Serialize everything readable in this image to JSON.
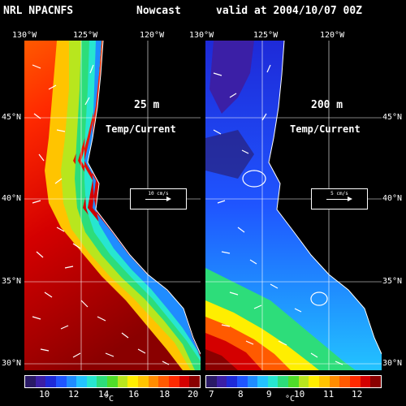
{
  "header": {
    "model": "NRL NPACNFS",
    "product": "Nowcast",
    "valid": "valid at 2004/10/07 00Z"
  },
  "lon_labels": [
    "130°W",
    "125°W",
    "120°W",
    "130°W",
    "125°W",
    "120°W"
  ],
  "lat_labels": [
    "45°N",
    "40°N",
    "35°N",
    "30°N",
    "45°N",
    "40°N",
    "35°N",
    "30°N"
  ],
  "panels": [
    {
      "depth": "25 m",
      "label": "Temp/Current",
      "ref_text": "10 cm/s",
      "colorbar": {
        "ticks": [
          "10",
          "12",
          "14",
          "16",
          "18",
          "20"
        ],
        "unit": "°C",
        "range_c": [
          8,
          21
        ]
      }
    },
    {
      "depth": "200 m",
      "label": "Temp/Current",
      "ref_text": "5 cm/s",
      "colorbar": {
        "ticks": [
          "7",
          "8",
          "9",
          "10",
          "11",
          "12"
        ],
        "unit": "°C",
        "range_c": [
          6.6,
          12.8
        ]
      }
    }
  ],
  "palette": [
    "#2a1a66",
    "#3b1fa6",
    "#1e2ad8",
    "#1f55ff",
    "#1f8cff",
    "#23c3ff",
    "#27e6d0",
    "#2ddd7a",
    "#4fdd2a",
    "#b8e61e",
    "#ffee00",
    "#ffc400",
    "#ff8c00",
    "#ff5a00",
    "#ff2a00",
    "#d40000",
    "#8a0000"
  ]
}
